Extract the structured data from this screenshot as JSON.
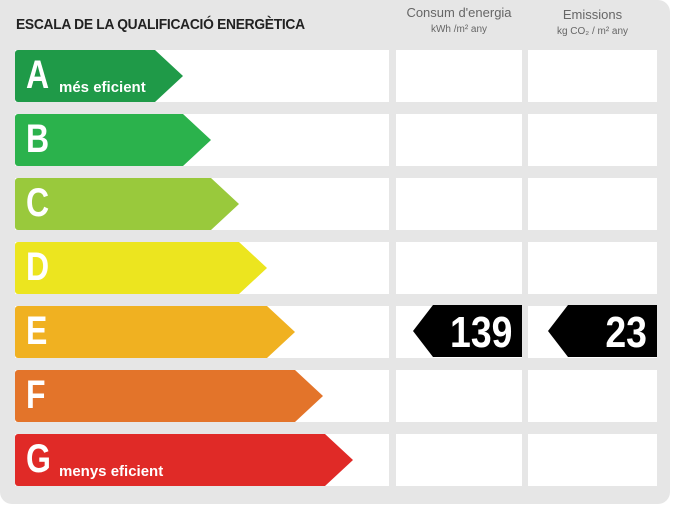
{
  "header": {
    "title": "ESCALA DE LA QUALIFICACIÓ ENERGÈTICA",
    "col_energy": "Consum d'energia",
    "col_energy_unit": "kWh /m² any",
    "col_emissions": "Emissions",
    "col_emissions_unit": "kg CO₂ / m² any"
  },
  "scale": [
    {
      "letter": "A",
      "label": "més eficient",
      "color": "#1f9a48"
    },
    {
      "letter": "B",
      "label": "",
      "color": "#2bb24c"
    },
    {
      "letter": "C",
      "label": "",
      "color": "#99c93c"
    },
    {
      "letter": "D",
      "label": "",
      "color": "#ece51f"
    },
    {
      "letter": "E",
      "label": "",
      "color": "#f0b121"
    },
    {
      "letter": "F",
      "label": "",
      "color": "#e3742a"
    },
    {
      "letter": "G",
      "label": "menys eficient",
      "color": "#e02a27"
    }
  ],
  "rating": {
    "class": "E",
    "energy": "139",
    "emissions": "23"
  },
  "chart_data": {
    "type": "table",
    "title": "ESCALA DE LA QUALIFICACIÓ ENERGÈTICA",
    "categories": [
      "A",
      "B",
      "C",
      "D",
      "E",
      "F",
      "G"
    ],
    "columns": [
      "Consum d'energia (kWh/m² any)",
      "Emissions (kg CO₂/m² any)"
    ],
    "selected_category": "E",
    "values": {
      "energy_consumption": 139,
      "emissions": 23
    },
    "annotations": [
      "A més eficient",
      "G menys eficient"
    ]
  }
}
